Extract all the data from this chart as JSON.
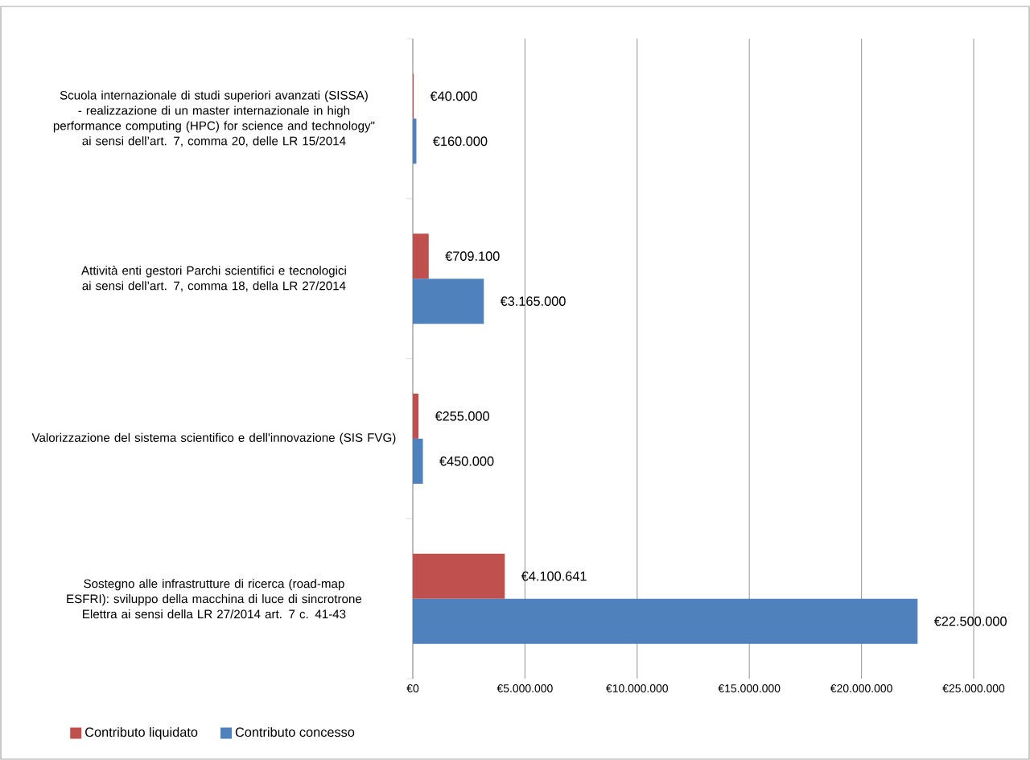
{
  "chart_data": {
    "type": "bar",
    "orientation": "horizontal",
    "categories": [
      "Scuola internazionale di studi superiori avanzati (SISSA) - realizzazione di un master internazionale in high performance computing (HPC) for science and technology\" ai sensi dell’art. 7, comma 20, delle LR 15/2014",
      "Attività enti gestori Parchi scientifici e tecnologici ai sensi dell’art. 7, comma 18, della LR 27/2014",
      "Valorizzazione del sistema scientifico e dell'innovazione (SIS FVG)",
      "Sostegno alle infrastrutture di ricerca (road-map ESFRI): sviluppo della macchina di luce di sincrotrone Elettra ai sensi della LR 27/2014 art. 7 c. 41-43"
    ],
    "series": [
      {
        "name": "Contributo liquidato",
        "color": "#c0504d",
        "values": [
          40000,
          709100,
          255000,
          4100641
        ],
        "value_labels": [
          "€40.000",
          "€709.100",
          "€255.000",
          "€4.100.641"
        ]
      },
      {
        "name": "Contributo concesso",
        "color": "#4f81bd",
        "values": [
          160000,
          3165000,
          450000,
          22500000
        ],
        "value_labels": [
          "€160.000",
          "€3.165.000",
          "€450.000",
          "€22.500.000"
        ]
      }
    ],
    "xlim": [
      0,
      25000000
    ],
    "xticks": [
      {
        "value": 0,
        "label": "€0"
      },
      {
        "value": 5000000,
        "label": "€5.000.000"
      },
      {
        "value": 10000000,
        "label": "€10.000.000"
      },
      {
        "value": 15000000,
        "label": "€15.000.000"
      },
      {
        "value": 20000000,
        "label": "€20.000.000"
      },
      {
        "value": 25000000,
        "label": "€25.000.000"
      }
    ],
    "grid": "x",
    "legend": "bottom left"
  }
}
